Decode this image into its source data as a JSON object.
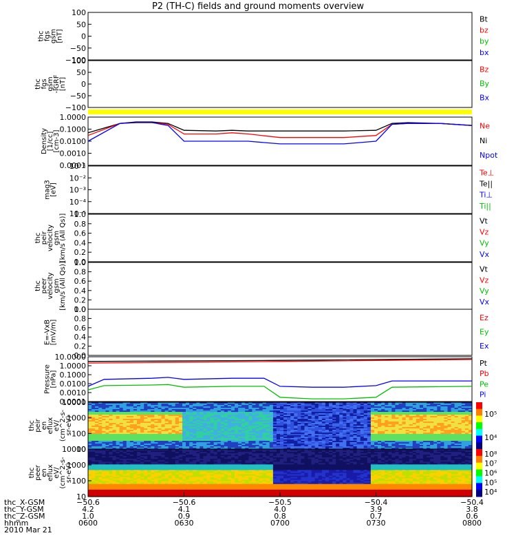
{
  "title": "P2 (TH-C) fields and ground moments overview",
  "chart_data": {
    "type": "line",
    "x_axis": {
      "rows": [
        {
          "label": "thc_X-GSM",
          "values": [
            "−50.6",
            "−50.6",
            "−50.5",
            "−50.4",
            "−50.4"
          ]
        },
        {
          "label": "thc_Y-GSM",
          "values": [
            "4.2",
            "4.1",
            "4.0",
            "3.9",
            "3.8"
          ]
        },
        {
          "label": "thc_Z-GSM",
          "values": [
            "1.0",
            "0.9",
            "0.8",
            "0.7",
            "0.6"
          ]
        },
        {
          "label": "hhmm",
          "values": [
            "0600",
            "0630",
            "0700",
            "0730",
            "0800"
          ]
        }
      ],
      "date_label": "2010 Mar 21",
      "range_hhmm": [
        "0600",
        "0800"
      ]
    },
    "panels": [
      {
        "ylabel": [
          "thc",
          "fgs",
          "gsm",
          "[nT]"
        ],
        "ylim": [
          -100,
          100
        ],
        "ticks": [
          "100",
          "50",
          "0",
          "−50",
          "−100"
        ],
        "tick_values": [
          100,
          50,
          0,
          -50,
          -100
        ],
        "legend": [
          {
            "name": "Bt",
            "color": "#000000"
          },
          {
            "name": "bz",
            "color": "#ff0000"
          },
          {
            "name": "by",
            "color": "#00c000"
          },
          {
            "name": "bx",
            "color": "#0000ff"
          }
        ]
      },
      {
        "ylabel": [
          "thc",
          "fgs",
          "gsm",
          "-IGRF",
          "[nT]"
        ],
        "ylim": [
          -150,
          150
        ],
        "ticks": [
          "100",
          "50",
          "0",
          "−50",
          "−100"
        ],
        "tick_values": [
          100,
          50,
          0,
          -50,
          -100
        ],
        "legend": [
          {
            "name": "Bz",
            "color": "#ff0000"
          },
          {
            "name": "By",
            "color": "#00c000"
          },
          {
            "name": "Bx",
            "color": "#0000ff"
          }
        ]
      },
      {
        "ylabel": [
          "Density",
          "[1/cc]",
          "[cm-3]"
        ],
        "scale": "log",
        "ylim": [
          0.0001,
          1.0
        ],
        "ticks": [
          "1.0000",
          "0.1000",
          "0.0100",
          "0.0010",
          "0.0001"
        ],
        "tick_values": [
          1,
          0.1,
          0.01,
          0.001,
          0.0001
        ],
        "legend": [
          {
            "name": "Ne",
            "color": "#ff0000"
          },
          {
            "name": "Ni",
            "color": "#000000"
          },
          {
            "name": "Npot",
            "color": "#0000ff"
          }
        ]
      },
      {
        "ylabel": [
          "mag3",
          "[eV]"
        ],
        "scale": "log",
        "ticks": [
          "10⁻¹",
          "10⁻²",
          "10⁻³",
          "10⁻⁴",
          "10⁻⁵"
        ],
        "legend": [
          {
            "name": "Te⊥",
            "color": "#ff0000"
          },
          {
            "name": "Te||",
            "color": "#000000"
          },
          {
            "name": "Ti⊥",
            "color": "#0000ff"
          },
          {
            "name": "Ti||",
            "color": "#00c000"
          }
        ]
      },
      {
        "ylabel": [
          "thc",
          "peir",
          "velocity",
          "gsm",
          "[km/s (All Qs)]"
        ],
        "ylim": [
          0,
          1
        ],
        "ticks": [
          "1.0",
          "0.8",
          "0.6",
          "0.4",
          "0.2",
          "0.0"
        ],
        "legend": [
          {
            "name": "Vt",
            "color": "#000000"
          },
          {
            "name": "Vz",
            "color": "#ff0000"
          },
          {
            "name": "Vy",
            "color": "#00c000"
          },
          {
            "name": "Vx",
            "color": "#0000ff"
          }
        ]
      },
      {
        "ylabel": [
          "thc",
          "peer",
          "velocity",
          "gsm",
          "[km/s (All Qs)]"
        ],
        "ylim": [
          0,
          1
        ],
        "ticks": [
          "1.0",
          "0.8",
          "0.6",
          "0.4",
          "0.2",
          "0.0"
        ],
        "legend": [
          {
            "name": "Vt",
            "color": "#000000"
          },
          {
            "name": "Vz",
            "color": "#ff0000"
          },
          {
            "name": "Vy",
            "color": "#00c000"
          },
          {
            "name": "Vx",
            "color": "#0000ff"
          }
        ]
      },
      {
        "ylabel": [
          "E=-VxB",
          "[mV/m]"
        ],
        "ylim": [
          0,
          1
        ],
        "ticks": [
          "1.0",
          "0.8",
          "0.6",
          "0.4",
          "0.2",
          "0.0"
        ],
        "legend": [
          {
            "name": "Ez",
            "color": "#ff0000"
          },
          {
            "name": "Ey",
            "color": "#00c000"
          },
          {
            "name": "Ex",
            "color": "#0000ff"
          }
        ]
      },
      {
        "ylabel": [
          "Pressure",
          "[nPa]"
        ],
        "scale": "log",
        "ylim": [
          0.0001,
          10
        ],
        "ticks": [
          "10.0000",
          "1.0000",
          "0.1000",
          "0.0100",
          "0.0010",
          "0.0001"
        ],
        "tick_values": [
          10,
          1,
          0.1,
          0.01,
          0.001,
          0.0001
        ],
        "legend": [
          {
            "name": "Pt",
            "color": "#000000"
          },
          {
            "name": "Pb",
            "color": "#ff0000"
          },
          {
            "name": "Pe",
            "color": "#00c000"
          },
          {
            "name": "Pi",
            "color": "#0000ff"
          }
        ]
      },
      {
        "ylabel": [
          "thc",
          "peir",
          "en",
          "eflux",
          "eV/",
          "(cm^2-s-",
          "sr-eV)"
        ],
        "scale": "log",
        "ylim": [
          10,
          10000
        ],
        "ticks": [
          "10000",
          "1000",
          "100",
          "10"
        ],
        "tick_values": [
          10000,
          1000,
          100,
          10
        ],
        "colorbar_ticks": [
          "10⁵",
          "10⁴"
        ]
      },
      {
        "ylabel": [
          "thc",
          "peer",
          "en",
          "eflux",
          "eV/",
          "(cm^2-s-",
          "sr-eV)"
        ],
        "scale": "log",
        "ylim": [
          10,
          10000
        ],
        "ticks": [
          "10000",
          "1000",
          "100",
          "10"
        ],
        "tick_values": [
          10000,
          1000,
          100,
          10
        ],
        "colorbar_ticks": [
          "10⁸",
          "10⁷",
          "10⁶",
          "10⁵",
          "10⁴"
        ]
      }
    ],
    "series": [
      {
        "name": "Ni",
        "panel": 2,
        "color": "#000000",
        "x_hhmm": [
          "0600",
          "0610",
          "0615",
          "0620",
          "0625",
          "0630",
          "0640",
          "0645",
          "0650",
          "0700",
          "0710",
          "0720",
          "0730",
          "0735",
          "0740",
          "0750",
          "0800"
        ],
        "values": [
          0.05,
          0.3,
          0.4,
          0.4,
          0.3,
          0.08,
          0.07,
          0.08,
          0.07,
          0.07,
          0.07,
          0.07,
          0.08,
          0.3,
          0.35,
          0.3,
          0.2
        ]
      },
      {
        "name": "Ne",
        "panel": 2,
        "color": "#ff0000",
        "x_hhmm": [
          "0600",
          "0610",
          "0615",
          "0620",
          "0625",
          "0630",
          "0640",
          "0645",
          "0650",
          "0700",
          "0710",
          "0720",
          "0730",
          "0735",
          "0740",
          "0750",
          "0800"
        ],
        "values": [
          0.03,
          0.3,
          0.35,
          0.35,
          0.25,
          0.04,
          0.04,
          0.05,
          0.04,
          0.02,
          0.02,
          0.02,
          0.03,
          0.25,
          0.3,
          0.3,
          0.2
        ]
      },
      {
        "name": "Npot",
        "panel": 2,
        "color": "#0000ff",
        "x_hhmm": [
          "0600",
          "0610",
          "0615",
          "0620",
          "0625",
          "0630",
          "0640",
          "0645",
          "0650",
          "0700",
          "0710",
          "0720",
          "0730",
          "0735",
          "0740",
          "0750",
          "0800"
        ],
        "values": [
          0.01,
          0.3,
          0.35,
          0.35,
          0.2,
          0.01,
          0.01,
          0.01,
          0.01,
          0.006,
          0.006,
          0.006,
          0.01,
          0.25,
          0.3,
          0.3,
          0.2
        ]
      },
      {
        "name": "Pi",
        "panel": 7,
        "color": "#0000ff",
        "x_hhmm": [
          "0600",
          "0605",
          "0620",
          "0625",
          "0630",
          "0645",
          "0655",
          "0700",
          "0710",
          "0720",
          "0730",
          "0735",
          "0800"
        ],
        "values": [
          0.005,
          0.03,
          0.04,
          0.05,
          0.03,
          0.04,
          0.04,
          0.005,
          0.004,
          0.004,
          0.006,
          0.02,
          0.02
        ]
      },
      {
        "name": "Pe",
        "panel": 7,
        "color": "#00c000",
        "x_hhmm": [
          "0600",
          "0605",
          "0620",
          "0625",
          "0630",
          "0645",
          "0655",
          "0700",
          "0710",
          "0720",
          "0730",
          "0735",
          "0800"
        ],
        "values": [
          0.002,
          0.006,
          0.007,
          0.008,
          0.004,
          0.005,
          0.005,
          0.0003,
          0.0002,
          0.0002,
          0.0003,
          0.004,
          0.005
        ]
      },
      {
        "name": "Pt",
        "panel": 7,
        "color": "#000000",
        "x_hhmm": [
          "0600",
          "0700",
          "0800"
        ],
        "values": [
          3,
          4,
          6
        ]
      },
      {
        "name": "Pb",
        "panel": 7,
        "color": "#ff0000",
        "x_hhmm": [
          "0600",
          "0700",
          "0800"
        ],
        "values": [
          2,
          3,
          5
        ]
      }
    ]
  }
}
